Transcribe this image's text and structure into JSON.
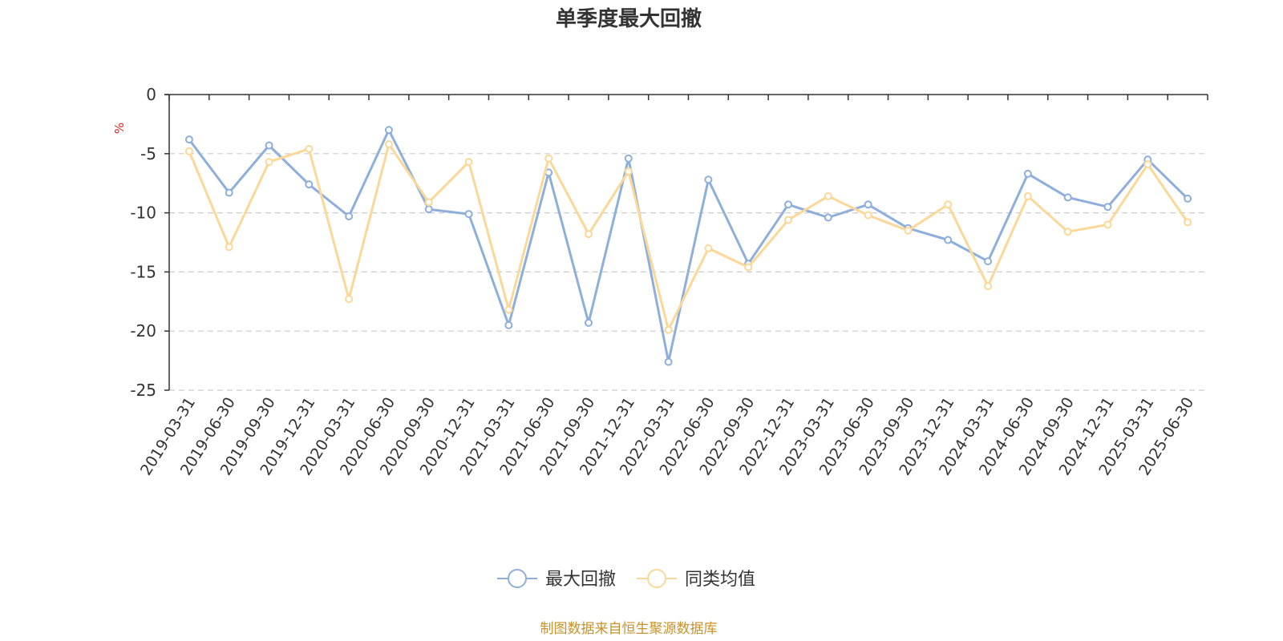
{
  "chart_data": {
    "type": "line",
    "title": "单季度最大回撤",
    "ylabel": "%",
    "ylim": [
      -25,
      0
    ],
    "yticks": [
      0,
      -5,
      -10,
      -15,
      -20,
      -25
    ],
    "grid": "horizontal-dashed",
    "legend_position": "bottom-center",
    "x": [
      "2019-03-31",
      "2019-06-30",
      "2019-09-30",
      "2019-12-31",
      "2020-03-31",
      "2020-06-30",
      "2020-09-30",
      "2020-12-31",
      "2021-03-31",
      "2021-06-30",
      "2021-09-30",
      "2021-12-31",
      "2022-03-31",
      "2022-06-30",
      "2022-09-30",
      "2022-12-31",
      "2023-03-31",
      "2023-06-30",
      "2023-09-30",
      "2023-12-31",
      "2024-03-31",
      "2024-06-30",
      "2024-09-30",
      "2024-12-31",
      "2025-03-31",
      "2025-06-30"
    ],
    "series": [
      {
        "name": "最大回撤",
        "color": "#8eaedb",
        "values": [
          -3.8,
          -8.3,
          -4.3,
          -7.6,
          -10.3,
          -3.0,
          -9.7,
          -10.1,
          -19.5,
          -6.6,
          -19.3,
          -5.4,
          -22.6,
          -7.2,
          -14.3,
          -9.3,
          -10.4,
          -9.3,
          -11.3,
          -12.3,
          -14.1,
          -6.7,
          -8.7,
          -9.5,
          -5.5,
          -8.8
        ]
      },
      {
        "name": "同类均值",
        "color": "#fbd898",
        "values": [
          -4.8,
          -12.9,
          -5.7,
          -4.6,
          -17.3,
          -4.2,
          -9.1,
          -5.7,
          -18.2,
          -5.4,
          -11.8,
          -6.5,
          -19.9,
          -13.0,
          -14.6,
          -10.6,
          -8.6,
          -10.2,
          -11.5,
          -9.3,
          -16.2,
          -8.6,
          -11.6,
          -11.0,
          -5.9,
          -10.8
        ]
      }
    ]
  },
  "source": "制图数据来自恒生聚源数据库"
}
